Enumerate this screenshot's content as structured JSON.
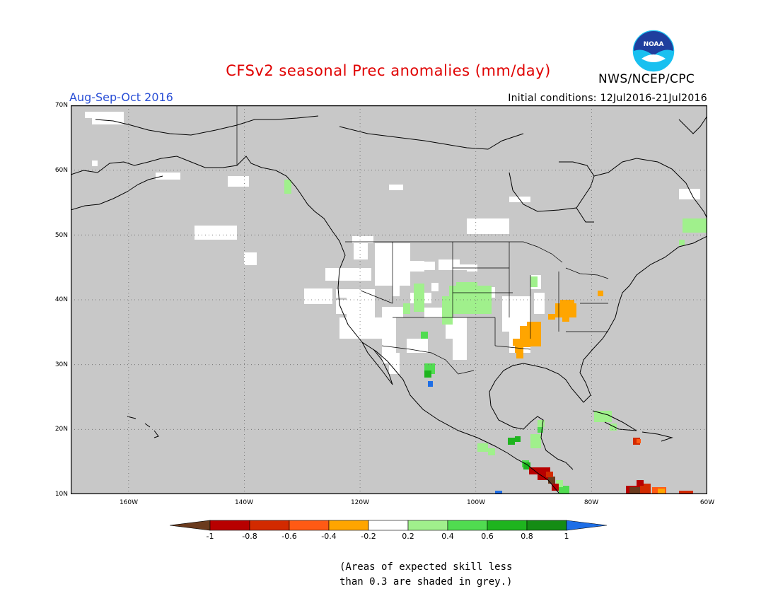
{
  "header": {
    "title": "CFSv2 seasonal Prec anomalies (mm/day)",
    "period": "Aug-Sep-Oct 2016",
    "initial_conditions": "Initial conditions: 12Jul2016-21Jul2016",
    "agency": "NWS/NCEP/CPC",
    "logo_text": "NOAA"
  },
  "map": {
    "lat_labels": [
      "70N",
      "60N",
      "50N",
      "40N",
      "30N",
      "20N",
      "10N"
    ],
    "lon_labels": [
      "160W",
      "140W",
      "120W",
      "100W",
      "80W",
      "60W"
    ],
    "extent": {
      "lon": [
        -170,
        -60
      ],
      "lat": [
        10,
        70
      ]
    },
    "mask_color": "#c8c8c8",
    "ocean_land_base": "grey"
  },
  "legend": {
    "tick_labels": [
      "-1",
      "-0.8",
      "-0.6",
      "-0.4",
      "-0.2",
      "0.2",
      "0.4",
      "0.6",
      "0.8",
      "1"
    ],
    "colors": [
      "#6b3b1e",
      "#b80000",
      "#d22a00",
      "#ff5a14",
      "#ffa500",
      "#ffffff",
      "#a0f08c",
      "#50dc50",
      "#1eb41e",
      "#148c14",
      "#1e6ee6"
    ]
  },
  "footnote": {
    "line1": "(Areas of expected skill less",
    "line2": "than 0.3 are shaded in grey.)"
  }
}
